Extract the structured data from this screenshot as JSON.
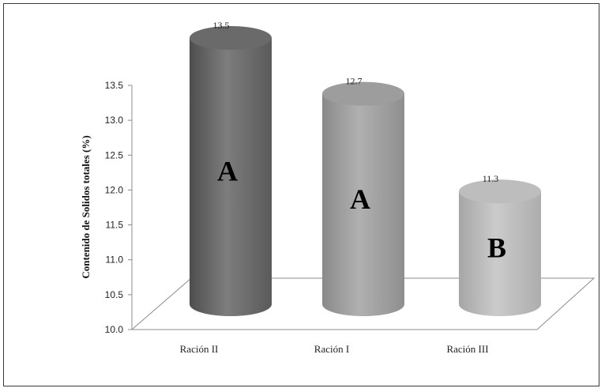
{
  "chart_data": {
    "type": "bar",
    "style": "3d-cylinder",
    "categories": [
      "Ración II",
      "Ración I",
      "Ración III"
    ],
    "values": [
      13.5,
      12.7,
      11.3
    ],
    "value_labels": [
      "13.5",
      "12.7",
      "11.3"
    ],
    "group_letters": [
      "A",
      "A",
      "B"
    ],
    "title": "",
    "xlabel": "",
    "ylabel": "Contenido  de  Solidos  totales  (%)",
    "ylim": [
      10.0,
      13.5
    ],
    "yticks": [
      "10.0",
      "10.5",
      "11.0",
      "11.5",
      "12.0",
      "12.5",
      "13.0",
      "13.5"
    ],
    "grid": false,
    "legend": "none",
    "colors": {
      "bar_1": "#7a7a7a",
      "bar_2": "#a9a9a9",
      "bar_3": "#c4c4c4",
      "axis": "#8c8c8c"
    }
  }
}
